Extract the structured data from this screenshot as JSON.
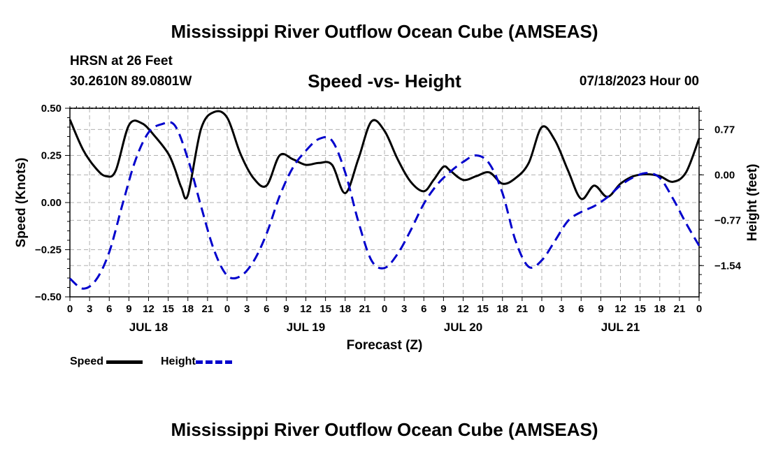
{
  "header": {
    "main_title": "Mississippi River Outflow Ocean Cube (AMSEAS)",
    "station": "HRSN at 26 Feet",
    "coords": "30.2610N  89.0801W",
    "chart_title": "Speed -vs- Height",
    "date": "07/18/2023 Hour 00"
  },
  "footer": {
    "title": "Mississippi River Outflow Ocean Cube (AMSEAS)"
  },
  "legend": {
    "speed_label": "Speed",
    "height_label": "Height"
  },
  "colors": {
    "speed": "#000000",
    "height": "#0000cc",
    "grid": "#b0b0b0"
  },
  "chart_data": {
    "type": "line",
    "title": "Speed -vs- Height",
    "xlabel": "Forecast (Z)",
    "ylabel": "Speed (Knots)",
    "y2label": "Height (feet)",
    "xlim": [
      0,
      96
    ],
    "ylim": [
      -0.5,
      0.5
    ],
    "y2lim": [
      -2.07,
      1.13
    ],
    "x_ticks": [
      0,
      3,
      6,
      9,
      12,
      15,
      18,
      21,
      24,
      27,
      30,
      33,
      36,
      39,
      42,
      45,
      48,
      51,
      54,
      57,
      60,
      63,
      66,
      69,
      72,
      75,
      78,
      81,
      84,
      87,
      90,
      93,
      96
    ],
    "x_tick_labels": [
      "0",
      "3",
      "6",
      "9",
      "12",
      "15",
      "18",
      "21",
      "0",
      "3",
      "6",
      "9",
      "12",
      "15",
      "18",
      "21",
      "0",
      "3",
      "6",
      "9",
      "12",
      "15",
      "18",
      "21",
      "0",
      "3",
      "6",
      "9",
      "12",
      "15",
      "18",
      "21",
      "0"
    ],
    "date_labels": [
      {
        "hour": 12,
        "label": "JUL 18"
      },
      {
        "hour": 36,
        "label": "JUL 19"
      },
      {
        "hour": 60,
        "label": "JUL 20"
      },
      {
        "hour": 84,
        "label": "JUL 21"
      }
    ],
    "y_ticks": [
      0.5,
      0.25,
      0.0,
      -0.25,
      -0.5
    ],
    "y_tick_labels": [
      "0.50",
      "0.25",
      "0.00",
      "−0.25",
      "−0.50"
    ],
    "y2_ticks": [
      0.77,
      0.0,
      -0.77,
      -1.54
    ],
    "y2_tick_labels": [
      "0.77",
      "0.00",
      "−0.77",
      "−1.54"
    ],
    "series": [
      {
        "name": "Speed",
        "axis": "left",
        "x": [
          0,
          2,
          4,
          5.5,
          7,
          9,
          11,
          13,
          15,
          16,
          17,
          18,
          20,
          22,
          24,
          26,
          28,
          30,
          32,
          34,
          36,
          38,
          40,
          42,
          44,
          46,
          48,
          50,
          52,
          54,
          55.5,
          57,
          58,
          60,
          62,
          64,
          66,
          68,
          70,
          72,
          74,
          76,
          78,
          80,
          82,
          84,
          86,
          88,
          90,
          92,
          94,
          96
        ],
        "y": [
          0.44,
          0.28,
          0.18,
          0.14,
          0.17,
          0.41,
          0.42,
          0.35,
          0.26,
          0.18,
          0.08,
          0.04,
          0.39,
          0.48,
          0.45,
          0.26,
          0.13,
          0.09,
          0.25,
          0.23,
          0.2,
          0.21,
          0.2,
          0.05,
          0.23,
          0.43,
          0.38,
          0.23,
          0.11,
          0.06,
          0.12,
          0.19,
          0.17,
          0.12,
          0.14,
          0.16,
          0.1,
          0.13,
          0.21,
          0.4,
          0.33,
          0.17,
          0.02,
          0.09,
          0.03,
          0.1,
          0.14,
          0.15,
          0.14,
          0.11,
          0.16,
          0.34
        ]
      },
      {
        "name": "Height",
        "axis": "right",
        "x": [
          0,
          2,
          4,
          6,
          8,
          10,
          12,
          14,
          16,
          18,
          20,
          22,
          24,
          26,
          28,
          30,
          32,
          34,
          36,
          38,
          40,
          42,
          44,
          46,
          48,
          50,
          52,
          54,
          56,
          58,
          60,
          62,
          64,
          66,
          68,
          70,
          72,
          74,
          76,
          78,
          80,
          82,
          84,
          86,
          88,
          90,
          92,
          94,
          96
        ],
        "y": [
          -1.76,
          -1.93,
          -1.78,
          -1.31,
          -0.51,
          0.25,
          0.72,
          0.86,
          0.84,
          0.27,
          -0.53,
          -1.28,
          -1.71,
          -1.72,
          -1.47,
          -1.0,
          -0.36,
          0.12,
          0.41,
          0.61,
          0.58,
          0.04,
          -0.79,
          -1.45,
          -1.58,
          -1.34,
          -0.94,
          -0.49,
          -0.17,
          0.05,
          0.22,
          0.33,
          0.19,
          -0.31,
          -1.12,
          -1.56,
          -1.45,
          -1.12,
          -0.78,
          -0.63,
          -0.53,
          -0.38,
          -0.18,
          -0.04,
          0.03,
          -0.05,
          -0.4,
          -0.82,
          -1.2
        ]
      }
    ]
  }
}
